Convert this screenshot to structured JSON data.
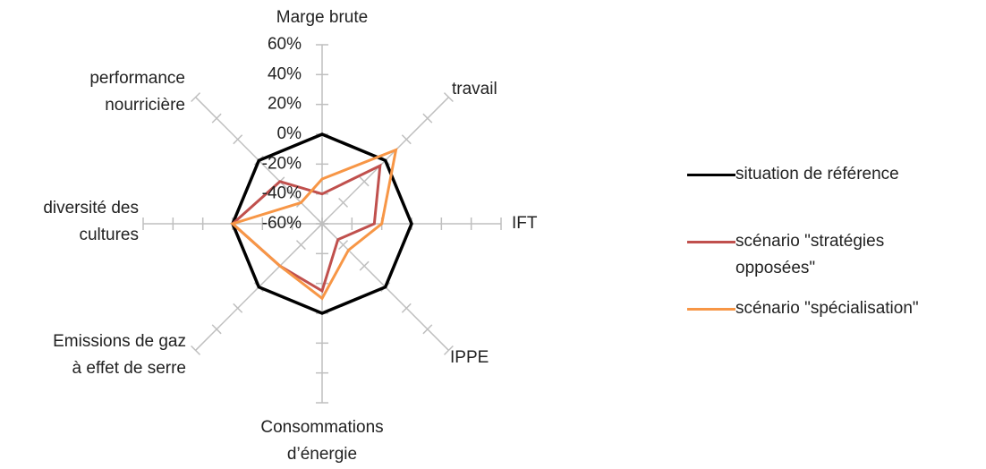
{
  "chart_data": {
    "type": "radar",
    "categories": [
      "Marge brute",
      "travail",
      "IFT",
      "IPPE",
      "Consommations d’énergie",
      "Emissions de gaz à effet de serre",
      "diversité des cultures",
      "performance nourricière"
    ],
    "series": [
      {
        "name": "situation de référence",
        "color": "#000000",
        "values": [
          0,
          0,
          0,
          0,
          0,
          0,
          0,
          0
        ]
      },
      {
        "name": "scénario \"stratégies opposées\"",
        "color": "#c0504d",
        "values": [
          -40,
          -5,
          -25,
          -45,
          -15,
          -20,
          0,
          -20
        ]
      },
      {
        "name": "scénario \"spécialisation\"",
        "color": "#f79646",
        "values": [
          -30,
          10,
          -20,
          -35,
          -10,
          -20,
          0,
          -40
        ]
      }
    ],
    "ylim": [
      -60,
      60
    ],
    "yticks": [
      {
        "value": -60,
        "label": "-60%"
      },
      {
        "value": -40,
        "label": "-40%"
      },
      {
        "value": -20,
        "label": "-20%"
      },
      {
        "value": 0,
        "label": "0%"
      },
      {
        "value": 20,
        "label": "20%"
      },
      {
        "value": 40,
        "label": "40%"
      },
      {
        "value": 60,
        "label": "60%"
      }
    ],
    "grid": true,
    "legend": "right"
  }
}
